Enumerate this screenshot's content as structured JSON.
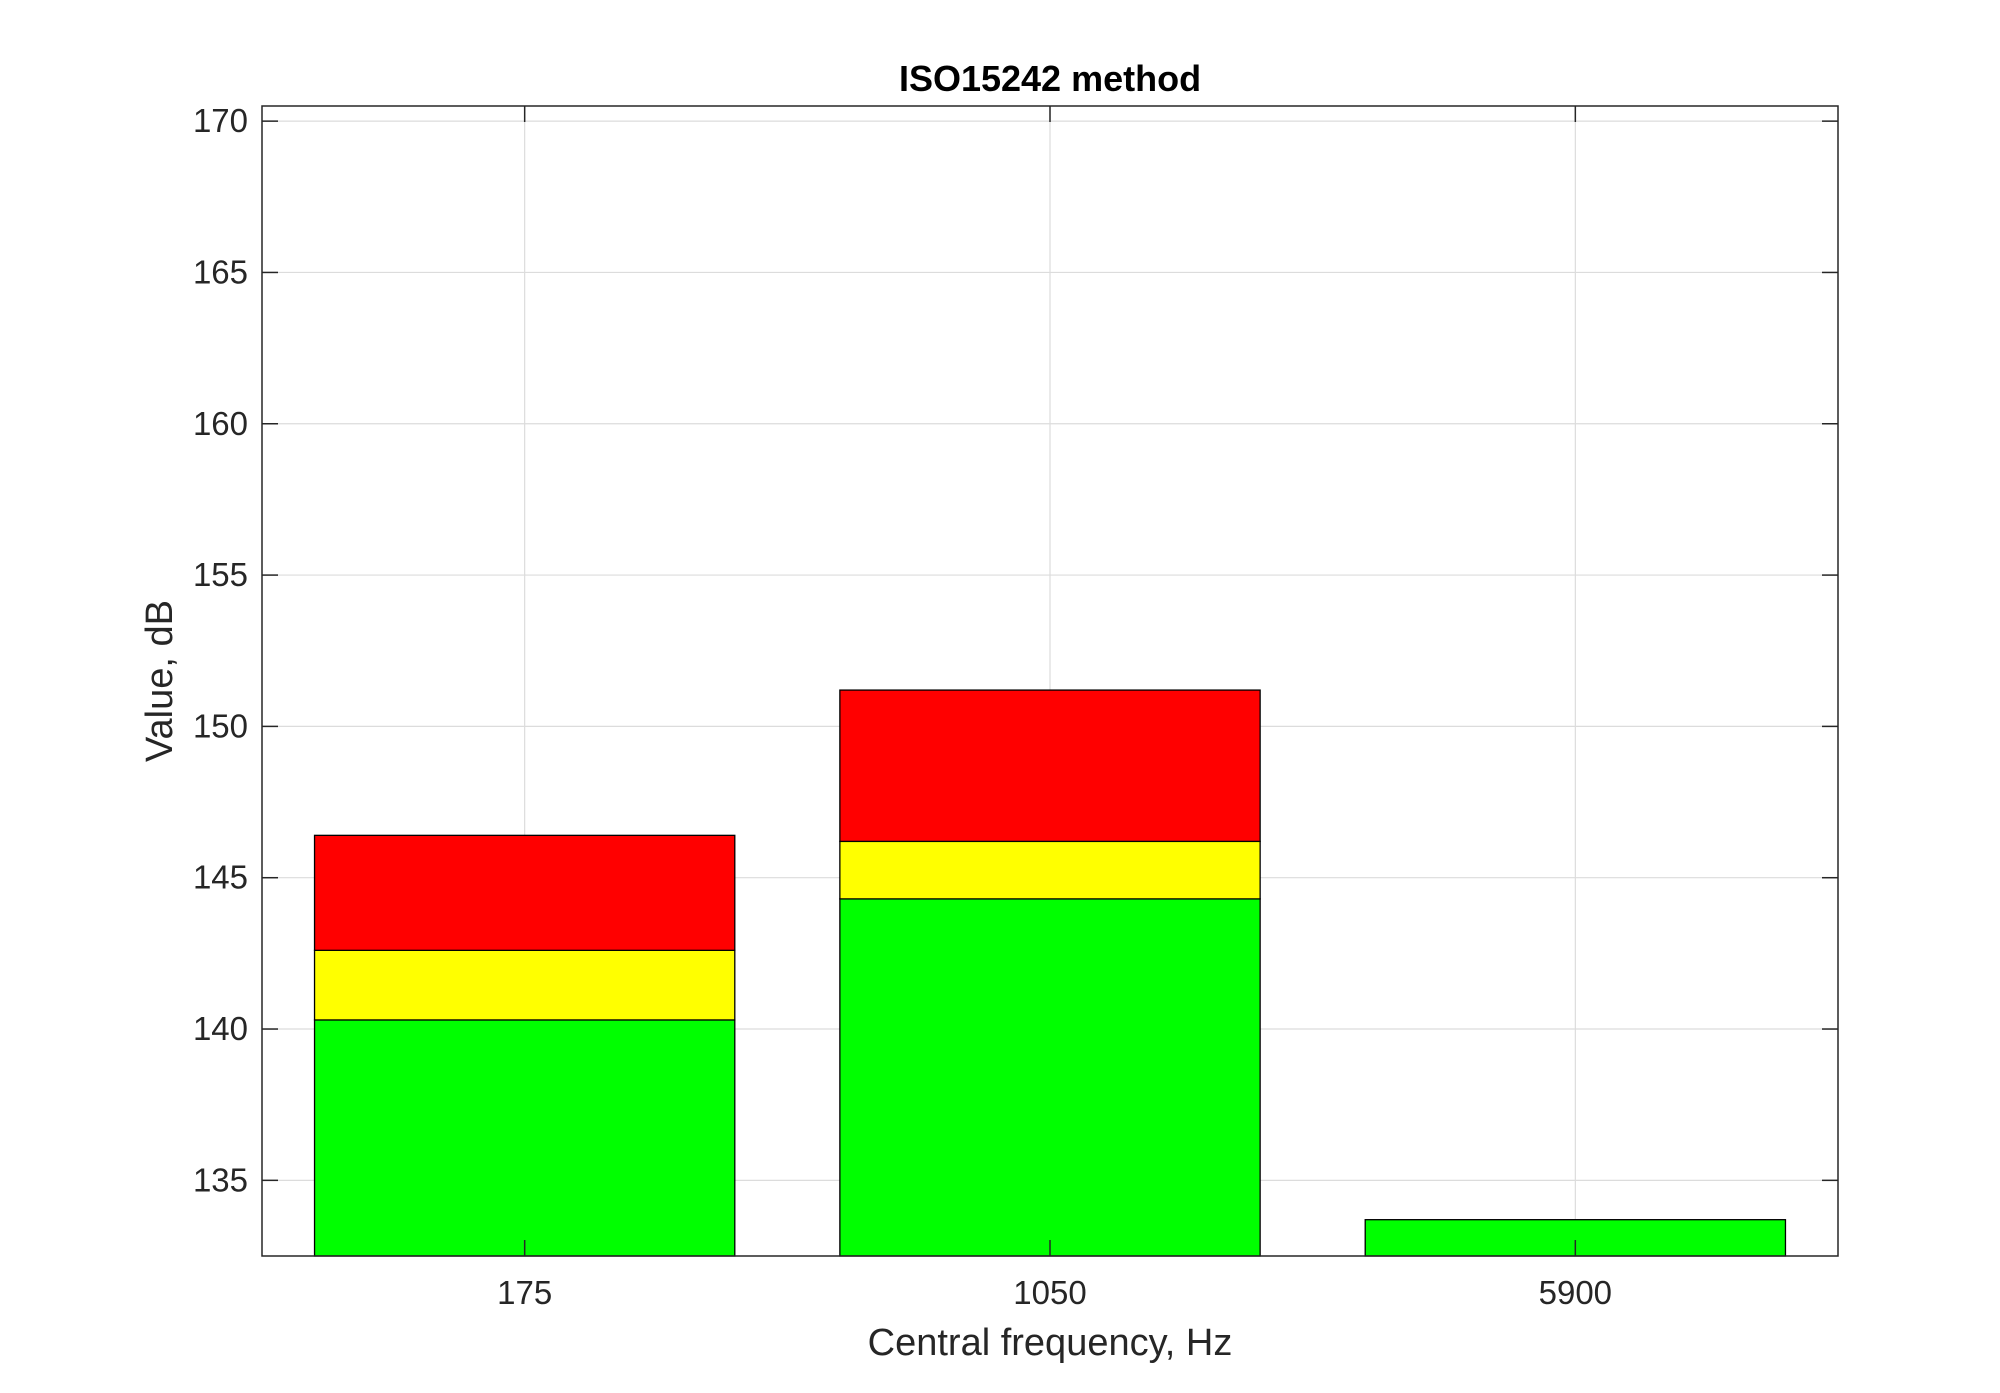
{
  "chart_data": {
    "type": "bar",
    "stacked": true,
    "title": "ISO15242 method",
    "xlabel": "Central frequency, Hz",
    "ylabel": "Value, dB",
    "categories": [
      "175",
      "1050",
      "5900"
    ],
    "ylim": [
      132.5,
      170.5
    ],
    "yticks": [
      135,
      140,
      145,
      150,
      155,
      160,
      165,
      170
    ],
    "grid": true,
    "segments": [
      {
        "color": "#00ff00",
        "values": [
          140.3,
          144.3,
          133.7
        ]
      },
      {
        "color": "#ffff00",
        "values": [
          142.6,
          146.2,
          null
        ]
      },
      {
        "color": "#ff0000",
        "values": [
          146.4,
          151.2,
          null
        ]
      }
    ]
  }
}
